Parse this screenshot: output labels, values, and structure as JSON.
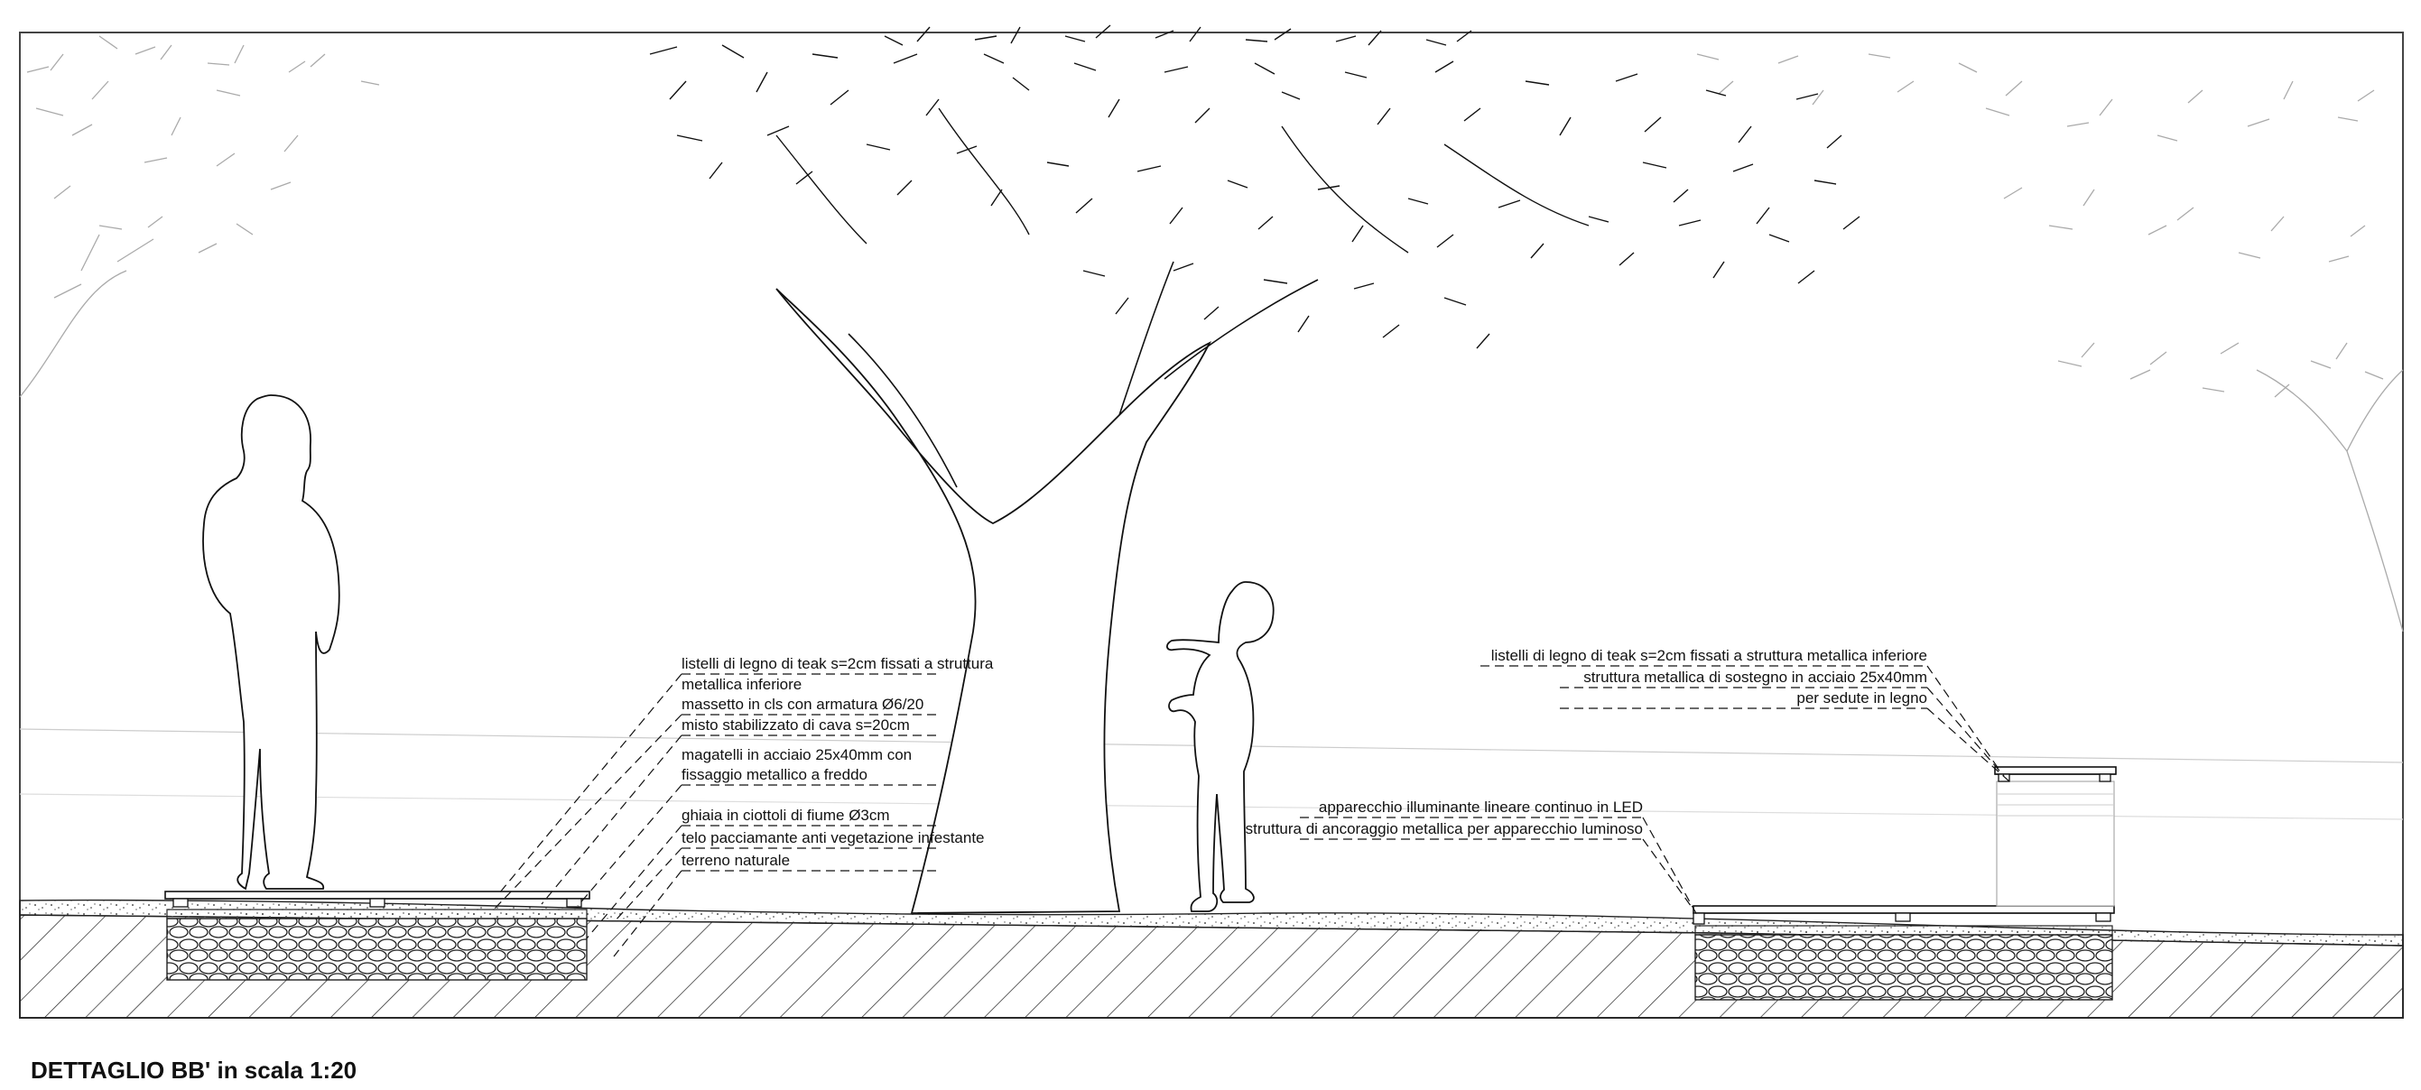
{
  "title": "DETTAGLIO BB' in scala 1:20",
  "annotations_left": [
    "listelli di legno di teak s=2cm fissati a struttura",
    "metallica inferiore",
    "massetto in cls con armatura Ø6/20",
    "misto stabilizzato di cava s=20cm",
    "magatelli in acciaio 25x40mm con",
    "fissaggio metallico a freddo",
    "ghiaia in ciottoli di fiume Ø3cm",
    "telo pacciamante anti vegetazione infestante",
    "terreno naturale"
  ],
  "annotations_right_top": [
    "listelli di legno di teak s=2cm fissati a struttura metallica inferiore",
    "struttura  metallica di sostegno in acciaio 25x40mm",
    "per sedute in legno"
  ],
  "annotations_right_mid": [
    "apparecchio illuminante lineare continuo in LED",
    "struttura di ancoraggio  metallica per apparecchio luminoso"
  ]
}
